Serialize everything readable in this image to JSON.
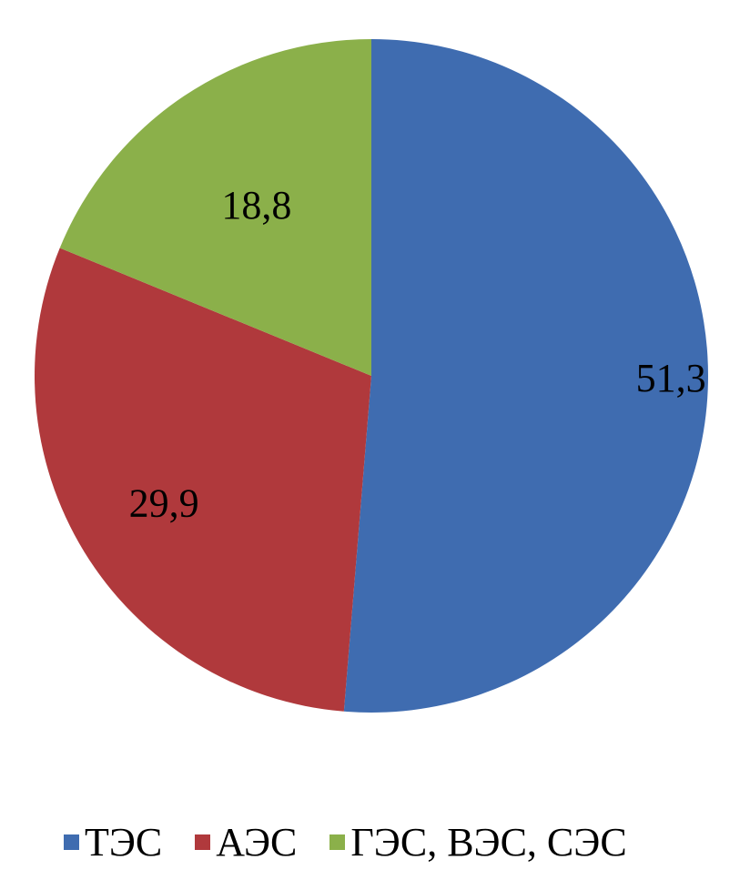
{
  "chart_data": {
    "type": "pie",
    "title": "",
    "start_angle": "12 o'clock, clockwise",
    "categories": [
      "ТЭС",
      "АЭС",
      "ГЭС, ВЭС, СЭС"
    ],
    "values": [
      51.3,
      29.9,
      18.8
    ],
    "data_labels": [
      "51,3",
      "29,9",
      "18,8"
    ],
    "colors": [
      "#3F6CB0",
      "#B0393C",
      "#8BB04A"
    ],
    "legend_position": "bottom"
  }
}
